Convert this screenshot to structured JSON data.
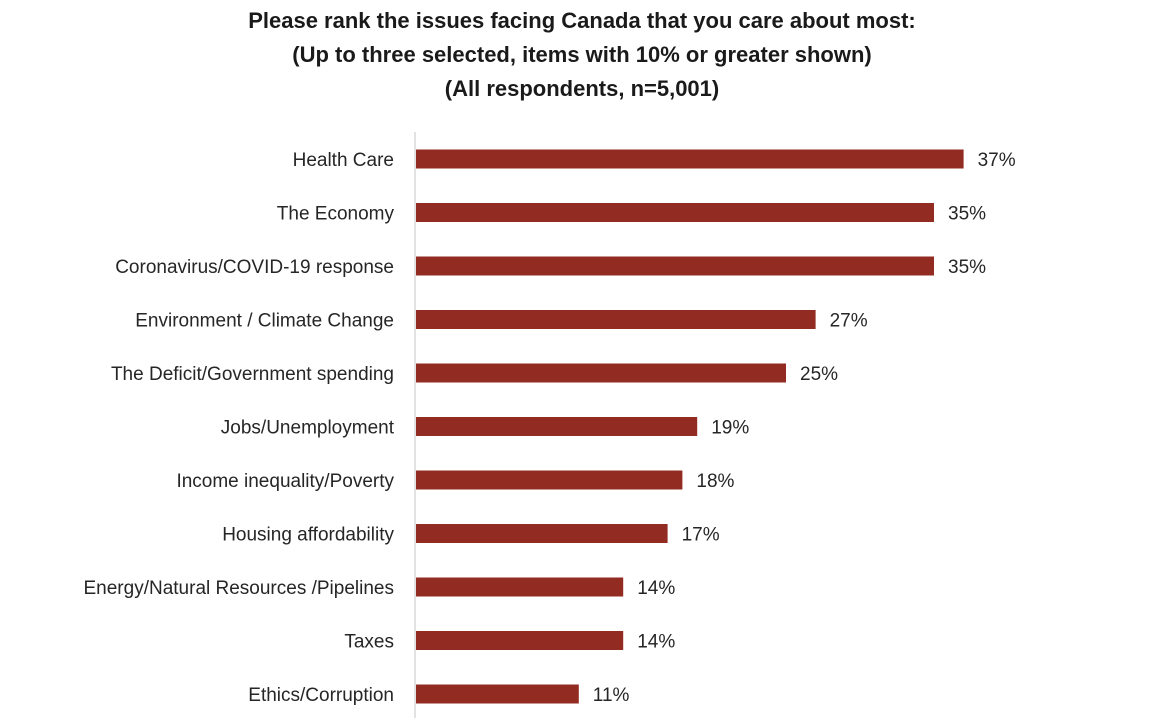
{
  "chart_data": {
    "type": "bar",
    "orientation": "horizontal",
    "title": [
      "Please rank the issues facing Canada that you care about most:",
      "(Up to three selected, items with 10% or greater shown)",
      "(All respondents,  n=5,001)"
    ],
    "categories": [
      "Health Care",
      "The Economy",
      "Coronavirus/COVID-19 response",
      "Environment / Climate Change",
      "The Deficit/Government spending",
      "Jobs/Unemployment",
      "Income inequality/Poverty",
      "Housing affordability",
      "Energy/Natural Resources /Pipelines",
      "Taxes",
      "Ethics/Corruption"
    ],
    "values": [
      37,
      35,
      35,
      27,
      25,
      19,
      18,
      17,
      14,
      14,
      11
    ],
    "value_labels": [
      "37%",
      "35%",
      "35%",
      "27%",
      "25%",
      "19%",
      "18%",
      "17%",
      "14%",
      "14%",
      "11%"
    ],
    "xlim": [
      0,
      40
    ],
    "bar_color": "#922b21",
    "axis_color": "#d9d9d9",
    "grid": false,
    "legend": "none"
  }
}
